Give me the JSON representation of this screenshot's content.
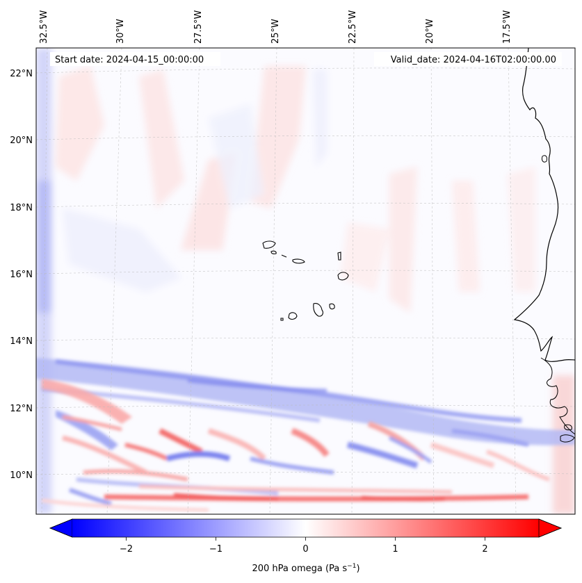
{
  "map": {
    "start_label": "Start date: 2024-04-15_00:00:00",
    "valid_label": "Valid_date: 2024-04-16T02:00:00.00",
    "lon_labels": [
      "32.5°W",
      "30°W",
      "27.5°W",
      "25°W",
      "22.5°W",
      "20°W",
      "17.5°W"
    ],
    "lat_labels": [
      "22°N",
      "20°N",
      "18°N",
      "16°N",
      "14°N",
      "12°N",
      "10°N"
    ]
  },
  "colorbar": {
    "label": "200 hPa omega (Pa s",
    "label_sup": "−1",
    "label_close": ")",
    "ticks": [
      "−2",
      "−1",
      "0",
      "1",
      "2"
    ],
    "range": [
      -2.6,
      2.6
    ],
    "tick_values": [
      -2,
      -1,
      0,
      1,
      2
    ],
    "colors": {
      "negative": "#0000ff",
      "zero": "#ffffff",
      "positive": "#ff0000"
    }
  }
}
